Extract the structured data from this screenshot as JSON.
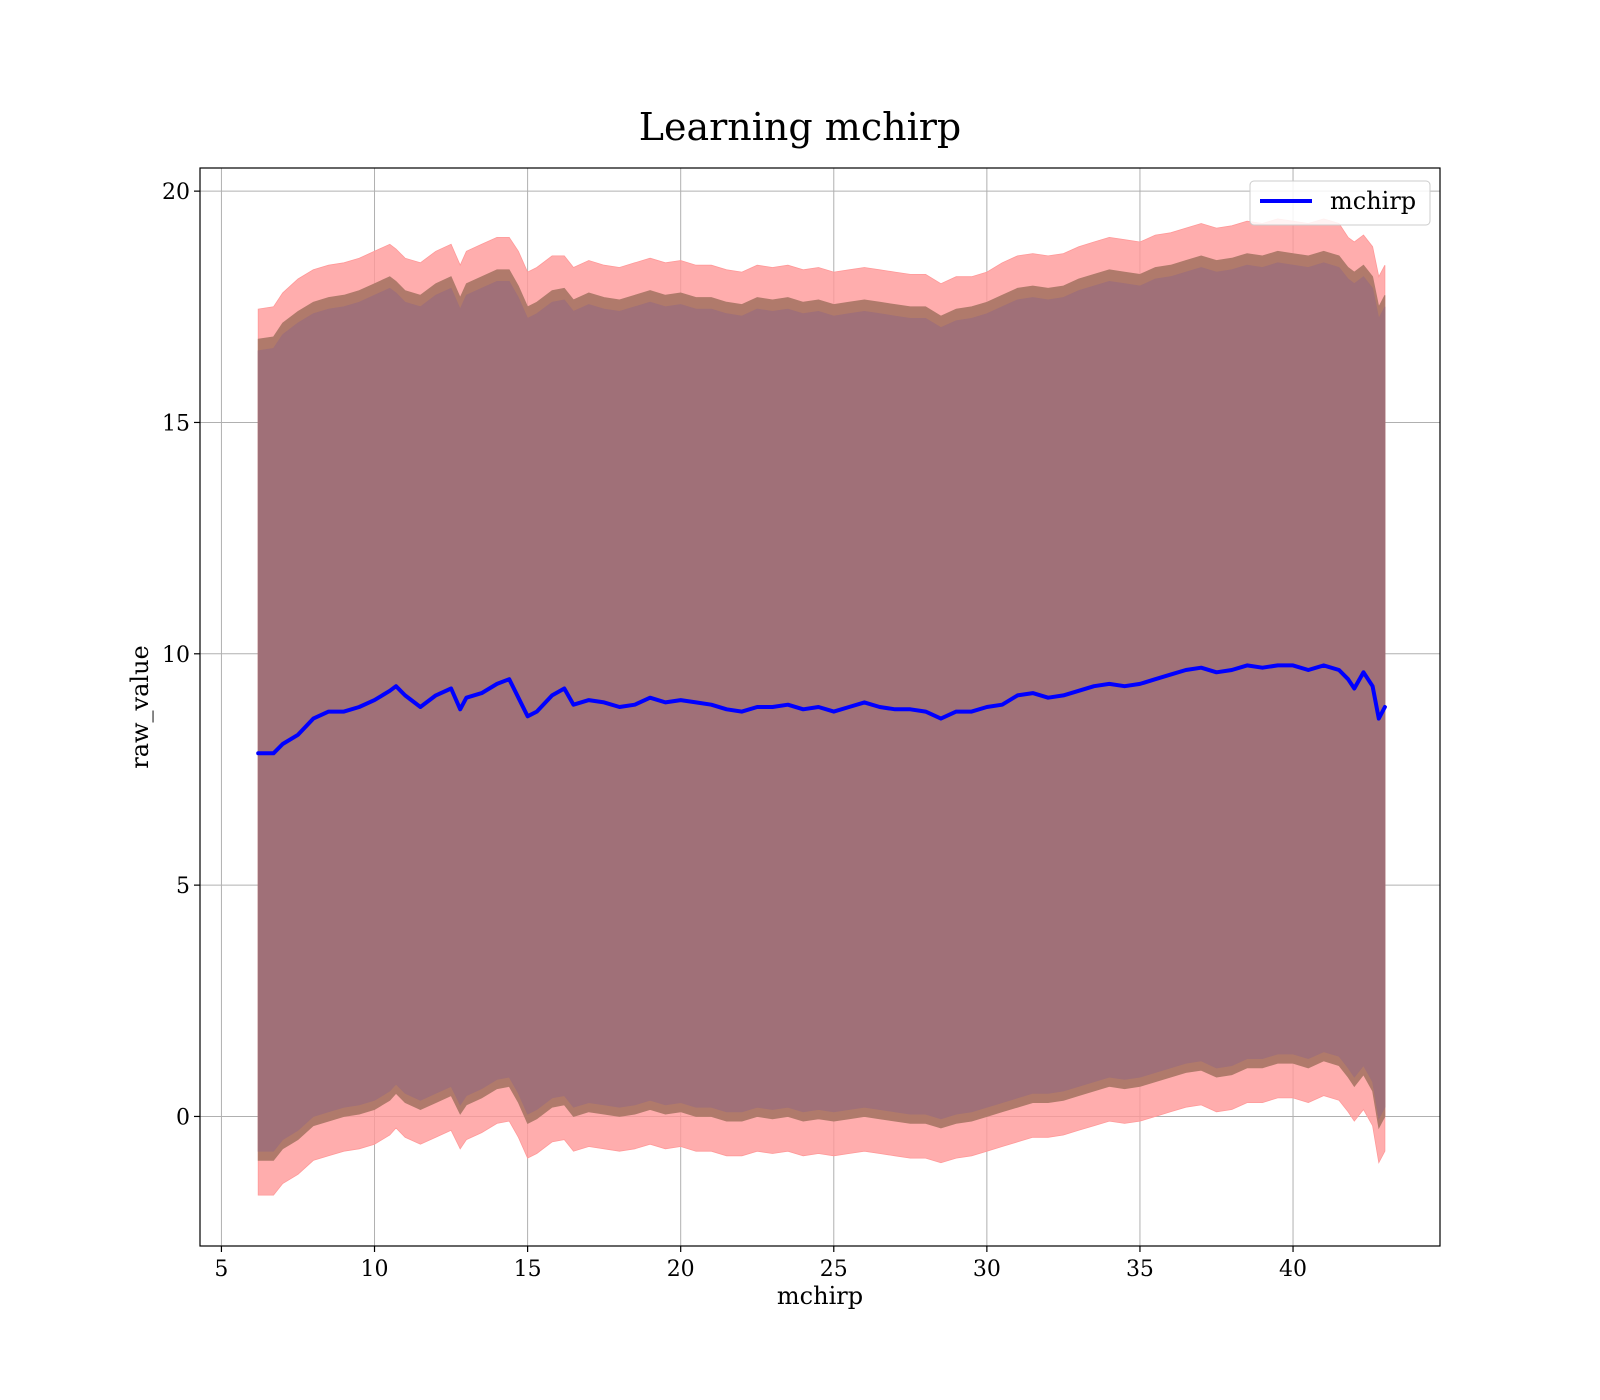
{
  "chart_data": {
    "type": "line",
    "title": "Learning mchirp",
    "xlabel": "mchirp",
    "ylabel": "raw_value",
    "xlim": [
      4.3,
      44.8
    ],
    "ylim": [
      -2.8,
      20.5
    ],
    "xticks": [
      5,
      10,
      15,
      20,
      25,
      30,
      35,
      40
    ],
    "yticks": [
      0,
      5,
      10,
      15,
      20
    ],
    "grid": true,
    "legend_position": "top-right",
    "colors": {
      "line": "#0000ff",
      "outer_band": "#ff9999",
      "middle_band": "#b07a6b",
      "inner_band": "#a07078",
      "grid": "#b0b0b0"
    },
    "x": [
      6.2,
      6.7,
      7.0,
      7.5,
      8.0,
      8.5,
      9.0,
      9.5,
      10.0,
      10.5,
      10.7,
      11.0,
      11.5,
      12.0,
      12.5,
      12.8,
      13.0,
      13.5,
      14.0,
      14.4,
      14.7,
      15.0,
      15.3,
      15.8,
      16.2,
      16.5,
      17.0,
      17.5,
      18.0,
      18.5,
      19.0,
      19.5,
      20.0,
      20.5,
      21.0,
      21.5,
      22.0,
      22.5,
      23.0,
      23.5,
      24.0,
      24.5,
      25.0,
      25.5,
      26.0,
      26.5,
      27.0,
      27.5,
      28.0,
      28.5,
      29.0,
      29.5,
      30.0,
      30.5,
      31.0,
      31.5,
      32.0,
      32.5,
      33.0,
      33.5,
      34.0,
      34.5,
      35.0,
      35.5,
      36.0,
      36.5,
      37.0,
      37.5,
      38.0,
      38.5,
      39.0,
      39.5,
      40.0,
      40.5,
      41.0,
      41.5,
      41.8,
      42.0,
      42.3,
      42.6,
      42.8,
      43.0
    ],
    "series": [
      {
        "name": "mchirp",
        "values": [
          7.85,
          7.85,
          8.05,
          8.25,
          8.6,
          8.75,
          8.75,
          8.85,
          9.0,
          9.2,
          9.3,
          9.1,
          8.85,
          9.1,
          9.25,
          8.8,
          9.05,
          9.15,
          9.35,
          9.45,
          9.05,
          8.65,
          8.75,
          9.1,
          9.25,
          8.9,
          9.0,
          8.95,
          8.85,
          8.9,
          9.05,
          8.95,
          9.0,
          8.95,
          8.9,
          8.8,
          8.75,
          8.85,
          8.85,
          8.9,
          8.8,
          8.85,
          8.75,
          8.85,
          8.95,
          8.85,
          8.8,
          8.8,
          8.75,
          8.6,
          8.75,
          8.75,
          8.85,
          8.9,
          9.1,
          9.15,
          9.05,
          9.1,
          9.2,
          9.3,
          9.35,
          9.3,
          9.35,
          9.45,
          9.55,
          9.65,
          9.7,
          9.6,
          9.65,
          9.75,
          9.7,
          9.75,
          9.75,
          9.65,
          9.75,
          9.65,
          9.45,
          9.25,
          9.6,
          9.3,
          8.6,
          8.85
        ]
      }
    ],
    "bands": [
      {
        "upper": [
          17.45,
          17.5,
          17.8,
          18.1,
          18.3,
          18.4,
          18.45,
          18.55,
          18.7,
          18.85,
          18.75,
          18.55,
          18.45,
          18.7,
          18.85,
          18.4,
          18.7,
          18.85,
          19.0,
          19.0,
          18.7,
          18.25,
          18.35,
          18.6,
          18.6,
          18.35,
          18.5,
          18.4,
          18.35,
          18.45,
          18.55,
          18.45,
          18.5,
          18.4,
          18.4,
          18.3,
          18.25,
          18.4,
          18.35,
          18.4,
          18.3,
          18.35,
          18.25,
          18.3,
          18.35,
          18.3,
          18.25,
          18.2,
          18.2,
          18.0,
          18.15,
          18.15,
          18.25,
          18.45,
          18.6,
          18.65,
          18.6,
          18.65,
          18.8,
          18.9,
          19.0,
          18.95,
          18.9,
          19.05,
          19.1,
          19.2,
          19.3,
          19.2,
          19.25,
          19.35,
          19.3,
          19.4,
          19.35,
          19.3,
          19.4,
          19.3,
          19.0,
          18.9,
          19.05,
          18.8,
          18.15,
          18.4
        ],
        "lower": [
          -1.7,
          -1.7,
          -1.45,
          -1.25,
          -0.95,
          -0.85,
          -0.75,
          -0.7,
          -0.6,
          -0.4,
          -0.25,
          -0.45,
          -0.6,
          -0.45,
          -0.3,
          -0.7,
          -0.5,
          -0.35,
          -0.15,
          -0.1,
          -0.45,
          -0.9,
          -0.8,
          -0.55,
          -0.5,
          -0.75,
          -0.65,
          -0.7,
          -0.75,
          -0.7,
          -0.6,
          -0.7,
          -0.65,
          -0.75,
          -0.75,
          -0.85,
          -0.85,
          -0.75,
          -0.8,
          -0.75,
          -0.85,
          -0.8,
          -0.85,
          -0.8,
          -0.75,
          -0.8,
          -0.85,
          -0.9,
          -0.9,
          -1.0,
          -0.9,
          -0.85,
          -0.75,
          -0.65,
          -0.55,
          -0.45,
          -0.45,
          -0.4,
          -0.3,
          -0.2,
          -0.1,
          -0.15,
          -0.1,
          0.0,
          0.1,
          0.2,
          0.25,
          0.1,
          0.15,
          0.3,
          0.3,
          0.4,
          0.4,
          0.3,
          0.45,
          0.35,
          0.1,
          -0.1,
          0.15,
          -0.2,
          -1.0,
          -0.75
        ]
      },
      {
        "upper": [
          16.8,
          16.85,
          17.15,
          17.4,
          17.6,
          17.7,
          17.75,
          17.85,
          18.0,
          18.15,
          18.05,
          17.85,
          17.75,
          18.0,
          18.15,
          17.7,
          18.0,
          18.15,
          18.3,
          18.3,
          17.95,
          17.5,
          17.6,
          17.85,
          17.9,
          17.65,
          17.8,
          17.7,
          17.65,
          17.75,
          17.85,
          17.75,
          17.8,
          17.7,
          17.7,
          17.6,
          17.55,
          17.7,
          17.65,
          17.7,
          17.6,
          17.65,
          17.55,
          17.6,
          17.65,
          17.6,
          17.55,
          17.5,
          17.5,
          17.3,
          17.45,
          17.5,
          17.6,
          17.75,
          17.9,
          17.95,
          17.9,
          17.95,
          18.1,
          18.2,
          18.3,
          18.25,
          18.2,
          18.35,
          18.4,
          18.5,
          18.6,
          18.5,
          18.55,
          18.65,
          18.6,
          18.7,
          18.65,
          18.6,
          18.7,
          18.6,
          18.35,
          18.25,
          18.4,
          18.15,
          17.5,
          17.75
        ],
        "lower": [
          -0.95,
          -0.95,
          -0.7,
          -0.5,
          -0.2,
          -0.1,
          0.0,
          0.05,
          0.15,
          0.35,
          0.5,
          0.3,
          0.15,
          0.3,
          0.45,
          0.05,
          0.25,
          0.4,
          0.6,
          0.65,
          0.3,
          -0.15,
          -0.05,
          0.2,
          0.25,
          0.0,
          0.1,
          0.05,
          0.0,
          0.05,
          0.15,
          0.05,
          0.1,
          0.0,
          0.0,
          -0.1,
          -0.1,
          0.0,
          -0.05,
          0.0,
          -0.1,
          -0.05,
          -0.1,
          -0.05,
          0.0,
          -0.05,
          -0.1,
          -0.15,
          -0.15,
          -0.25,
          -0.15,
          -0.1,
          0.0,
          0.1,
          0.2,
          0.3,
          0.3,
          0.35,
          0.45,
          0.55,
          0.65,
          0.6,
          0.65,
          0.75,
          0.85,
          0.95,
          1.0,
          0.85,
          0.9,
          1.05,
          1.05,
          1.15,
          1.15,
          1.05,
          1.2,
          1.1,
          0.85,
          0.65,
          0.9,
          0.55,
          -0.25,
          0.0
        ]
      },
      {
        "upper": [
          16.55,
          16.6,
          16.9,
          17.15,
          17.35,
          17.45,
          17.5,
          17.6,
          17.75,
          17.9,
          17.8,
          17.6,
          17.5,
          17.75,
          17.9,
          17.45,
          17.75,
          17.9,
          18.05,
          18.05,
          17.7,
          17.25,
          17.35,
          17.6,
          17.65,
          17.4,
          17.55,
          17.45,
          17.4,
          17.5,
          17.6,
          17.5,
          17.55,
          17.45,
          17.45,
          17.35,
          17.3,
          17.45,
          17.4,
          17.45,
          17.35,
          17.4,
          17.3,
          17.35,
          17.4,
          17.35,
          17.3,
          17.25,
          17.25,
          17.05,
          17.2,
          17.25,
          17.35,
          17.5,
          17.65,
          17.7,
          17.65,
          17.7,
          17.85,
          17.95,
          18.05,
          18.0,
          17.95,
          18.1,
          18.15,
          18.25,
          18.35,
          18.25,
          18.3,
          18.4,
          18.35,
          18.45,
          18.4,
          18.35,
          18.45,
          18.35,
          18.1,
          18.0,
          18.15,
          17.9,
          17.25,
          17.5
        ],
        "lower": [
          -0.75,
          -0.75,
          -0.5,
          -0.3,
          0.0,
          0.1,
          0.2,
          0.25,
          0.35,
          0.55,
          0.7,
          0.5,
          0.35,
          0.5,
          0.65,
          0.25,
          0.45,
          0.6,
          0.8,
          0.85,
          0.5,
          0.05,
          0.15,
          0.4,
          0.45,
          0.2,
          0.3,
          0.25,
          0.2,
          0.25,
          0.35,
          0.25,
          0.3,
          0.2,
          0.2,
          0.1,
          0.1,
          0.2,
          0.15,
          0.2,
          0.1,
          0.15,
          0.1,
          0.15,
          0.2,
          0.15,
          0.1,
          0.05,
          0.05,
          -0.05,
          0.05,
          0.1,
          0.2,
          0.3,
          0.4,
          0.5,
          0.5,
          0.55,
          0.65,
          0.75,
          0.85,
          0.8,
          0.85,
          0.95,
          1.05,
          1.15,
          1.2,
          1.05,
          1.1,
          1.25,
          1.25,
          1.35,
          1.35,
          1.25,
          1.4,
          1.3,
          1.05,
          0.85,
          1.1,
          0.75,
          -0.05,
          0.2
        ]
      }
    ]
  }
}
